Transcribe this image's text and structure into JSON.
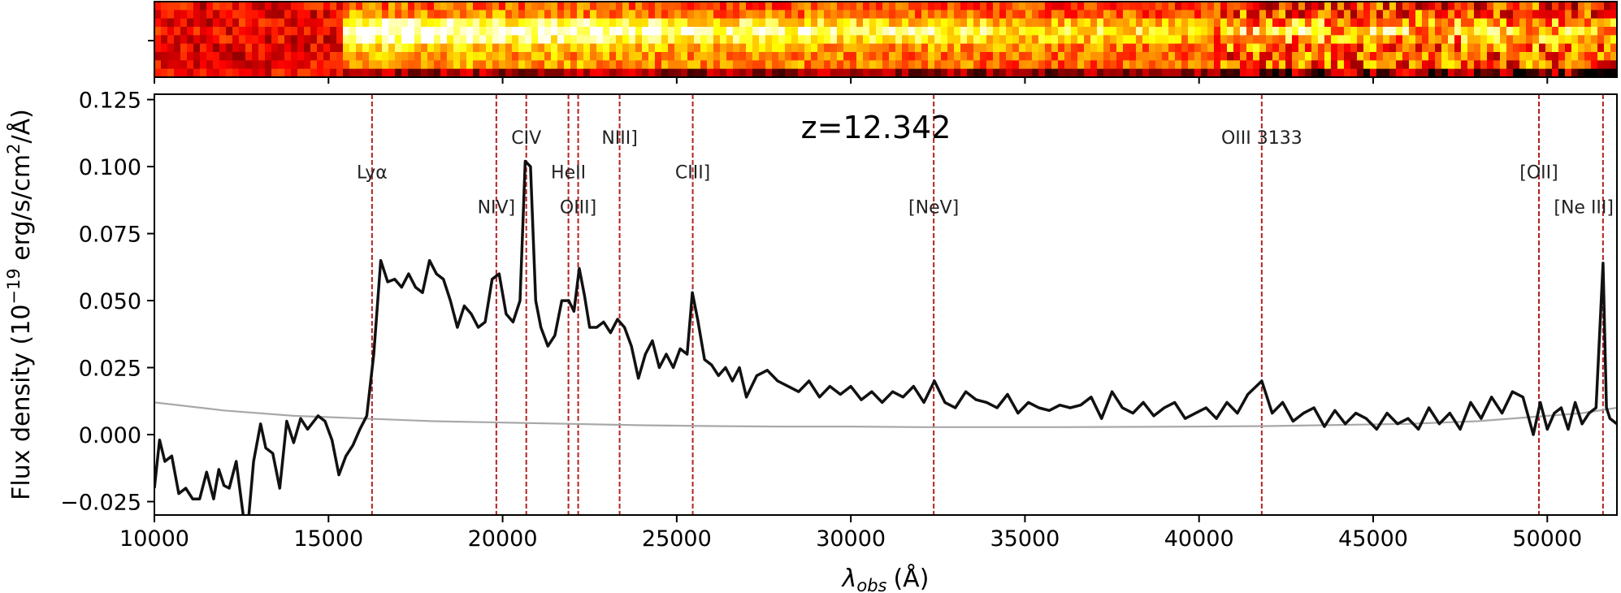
{
  "chart_data": {
    "type": "line",
    "title": "",
    "annotation": "z=12.342",
    "xlabel": "λobs (Å)",
    "xlabel_parts": {
      "symbol": "λ",
      "subscript": "obs",
      "unit": "(Å)"
    },
    "ylabel": "Flux density (10−19 erg/s/cm2/Å)",
    "ylabel_parts": {
      "pre": "Flux density (10",
      "exp": "−19",
      "mid": " erg/s/cm",
      "exp2": "2",
      "post": "/Å)"
    },
    "xlim": [
      10000,
      52000
    ],
    "ylim": [
      -0.03,
      0.127
    ],
    "x_ticks": [
      10000,
      15000,
      20000,
      25000,
      30000,
      35000,
      40000,
      45000,
      50000
    ],
    "x_tick_labels": [
      "10000",
      "15000",
      "20000",
      "25000",
      "30000",
      "35000",
      "40000",
      "45000",
      "50000"
    ],
    "y_ticks": [
      -0.025,
      0,
      0.025,
      0.05,
      0.075,
      0.1,
      0.125
    ],
    "y_tick_labels": [
      "−0.025",
      "0.000",
      "0.025",
      "0.050",
      "0.075",
      "0.100",
      "0.125"
    ],
    "grid": false,
    "line_markers": [
      {
        "label": "Lyα",
        "x": 16250,
        "label_y": 0.098
      },
      {
        "label": "NIV]",
        "x": 19820,
        "label_y": 0.085
      },
      {
        "label": "CIV",
        "x": 20680,
        "label_y": 0.111
      },
      {
        "label": "HeII",
        "x": 21890,
        "label_y": 0.098
      },
      {
        "label": "OIII]",
        "x": 22170,
        "label_y": 0.085
      },
      {
        "label": "NIII]",
        "x": 23360,
        "label_y": 0.111
      },
      {
        "label": "CIII]",
        "x": 25460,
        "label_y": 0.098
      },
      {
        "label": "[NeV]",
        "x": 32380,
        "label_y": 0.085
      },
      {
        "label": "OIII 3133",
        "x": 41800,
        "label_y": 0.111
      },
      {
        "label": "[OII]",
        "x": 49760,
        "label_y": 0.098
      },
      {
        "label": "[Ne III]",
        "x": 51600,
        "label_y": 0.085
      }
    ],
    "series": [
      {
        "role": "flux",
        "color": "#111111",
        "x": [
          10000,
          10150,
          10300,
          10500,
          10700,
          10900,
          11100,
          11300,
          11500,
          11700,
          11850,
          12000,
          12150,
          12350,
          12550,
          12700,
          12850,
          13050,
          13200,
          13400,
          13600,
          13800,
          14000,
          14200,
          14400,
          14700,
          14900,
          15100,
          15300,
          15500,
          15700,
          15900,
          16100,
          16300,
          16500,
          16700,
          16900,
          17100,
          17300,
          17500,
          17700,
          17900,
          18100,
          18300,
          18500,
          18700,
          18900,
          19100,
          19300,
          19500,
          19700,
          19900,
          20100,
          20300,
          20500,
          20650,
          20800,
          20950,
          21100,
          21300,
          21500,
          21700,
          21900,
          22050,
          22200,
          22350,
          22500,
          22700,
          22900,
          23100,
          23300,
          23500,
          23700,
          23900,
          24100,
          24300,
          24500,
          24700,
          24900,
          25100,
          25300,
          25450,
          25600,
          25800,
          26000,
          26200,
          26400,
          26600,
          26800,
          27000,
          27300,
          27600,
          27900,
          28200,
          28500,
          28800,
          29100,
          29400,
          29700,
          30000,
          30300,
          30600,
          30900,
          31200,
          31500,
          31800,
          32100,
          32400,
          32700,
          33000,
          33300,
          33600,
          33900,
          34200,
          34500,
          34800,
          35100,
          35400,
          35700,
          36000,
          36300,
          36600,
          36900,
          37200,
          37500,
          37800,
          38100,
          38400,
          38700,
          39000,
          39300,
          39600,
          39900,
          40200,
          40500,
          40800,
          41100,
          41400,
          41800,
          42100,
          42400,
          42700,
          43000,
          43300,
          43600,
          43900,
          44200,
          44500,
          44800,
          45100,
          45400,
          45700,
          46000,
          46300,
          46600,
          46900,
          47200,
          47500,
          47800,
          48100,
          48400,
          48700,
          49000,
          49300,
          49600,
          49800,
          50000,
          50200,
          50400,
          50600,
          50800,
          51000,
          51200,
          51400,
          51600,
          51700,
          51800,
          52000
        ],
        "y": [
          -0.02,
          -0.002,
          -0.01,
          -0.008,
          -0.022,
          -0.02,
          -0.024,
          -0.024,
          -0.014,
          -0.024,
          -0.013,
          -0.019,
          -0.02,
          -0.01,
          -0.03,
          -0.032,
          -0.01,
          0.004,
          -0.005,
          -0.007,
          -0.02,
          0.005,
          -0.003,
          0.006,
          0.002,
          0.007,
          0.005,
          -0.002,
          -0.015,
          -0.008,
          -0.004,
          0.002,
          0.007,
          0.03,
          0.065,
          0.057,
          0.058,
          0.055,
          0.06,
          0.055,
          0.053,
          0.065,
          0.06,
          0.058,
          0.05,
          0.04,
          0.048,
          0.045,
          0.04,
          0.042,
          0.058,
          0.06,
          0.045,
          0.042,
          0.05,
          0.102,
          0.1,
          0.05,
          0.04,
          0.033,
          0.037,
          0.05,
          0.05,
          0.046,
          0.062,
          0.052,
          0.04,
          0.04,
          0.042,
          0.038,
          0.043,
          0.04,
          0.033,
          0.021,
          0.03,
          0.035,
          0.025,
          0.03,
          0.025,
          0.032,
          0.03,
          0.053,
          0.043,
          0.028,
          0.026,
          0.022,
          0.025,
          0.02,
          0.025,
          0.014,
          0.022,
          0.024,
          0.02,
          0.018,
          0.016,
          0.02,
          0.014,
          0.018,
          0.015,
          0.018,
          0.013,
          0.016,
          0.012,
          0.016,
          0.014,
          0.018,
          0.012,
          0.02,
          0.012,
          0.01,
          0.016,
          0.013,
          0.012,
          0.01,
          0.015,
          0.008,
          0.012,
          0.01,
          0.009,
          0.011,
          0.01,
          0.011,
          0.014,
          0.006,
          0.016,
          0.01,
          0.008,
          0.012,
          0.007,
          0.01,
          0.012,
          0.006,
          0.008,
          0.01,
          0.006,
          0.012,
          0.008,
          0.015,
          0.02,
          0.008,
          0.012,
          0.005,
          0.008,
          0.01,
          0.003,
          0.009,
          0.004,
          0.008,
          0.006,
          0.002,
          0.008,
          0.004,
          0.006,
          0.002,
          0.01,
          0.004,
          0.008,
          0.002,
          0.012,
          0.006,
          0.014,
          0.008,
          0.016,
          0.014,
          0.0,
          0.012,
          0.002,
          0.008,
          0.01,
          0.002,
          0.012,
          0.004,
          0.008,
          0.01,
          0.064,
          0.01,
          0.006,
          0.004
        ]
      },
      {
        "role": "uncertainty",
        "color": "#a8a8a8",
        "x": [
          10000,
          12000,
          14000,
          16000,
          18000,
          20000,
          22000,
          24000,
          26000,
          28000,
          30000,
          32000,
          34000,
          36000,
          38000,
          40000,
          42000,
          44000,
          46000,
          48000,
          50000,
          51000,
          52000
        ],
        "y": [
          0.012,
          0.009,
          0.007,
          0.006,
          0.005,
          0.0045,
          0.004,
          0.0035,
          0.0032,
          0.003,
          0.003,
          0.0028,
          0.0028,
          0.0028,
          0.0029,
          0.003,
          0.0032,
          0.0036,
          0.004,
          0.005,
          0.007,
          0.008,
          0.01
        ]
      }
    ],
    "spectrum_2d_image": {
      "colormap": "hot",
      "description_visible": true
    }
  }
}
